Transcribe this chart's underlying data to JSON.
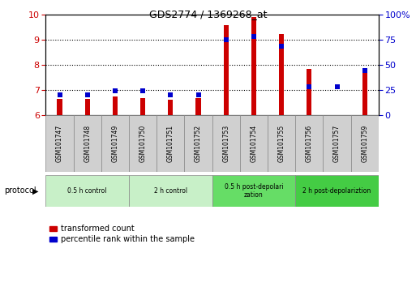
{
  "title": "GDS2774 / 1369268_at",
  "samples": [
    "GSM101747",
    "GSM101748",
    "GSM101749",
    "GSM101750",
    "GSM101751",
    "GSM101752",
    "GSM101753",
    "GSM101754",
    "GSM101755",
    "GSM101756",
    "GSM101757",
    "GSM101759"
  ],
  "transformed_count": [
    6.62,
    6.62,
    6.72,
    6.68,
    6.6,
    6.68,
    9.58,
    9.88,
    9.22,
    7.82,
    6.0,
    7.82
  ],
  "percentile_rank": [
    20,
    20,
    24,
    24,
    20,
    20,
    75,
    78,
    68,
    28,
    28,
    44
  ],
  "ylim_left": [
    6,
    10
  ],
  "ylim_right": [
    0,
    100
  ],
  "yticks_left": [
    6,
    7,
    8,
    9,
    10
  ],
  "yticks_right": [
    0,
    25,
    50,
    75,
    100
  ],
  "bar_color": "#cc0000",
  "dot_color": "#0000cc",
  "protocol_groups": [
    {
      "label": "0.5 h control",
      "start": 0,
      "end": 2,
      "color": "#c8f0c8"
    },
    {
      "label": "2 h control",
      "start": 3,
      "end": 5,
      "color": "#c8f0c8"
    },
    {
      "label": "0.5 h post-depolarization",
      "start": 6,
      "end": 8,
      "color": "#66dd66"
    },
    {
      "label": "2 h post-depolariztion",
      "start": 9,
      "end": 11,
      "color": "#44cc44"
    }
  ],
  "legend_bar_label": "transformed count",
  "legend_dot_label": "percentile rank within the sample",
  "protocol_label": "protocol",
  "tick_label_color_left": "#cc0000",
  "tick_label_color_right": "#0000cc",
  "bar_width": 0.18,
  "dot_size": 22,
  "sample_box_color": "#d0d0d0"
}
